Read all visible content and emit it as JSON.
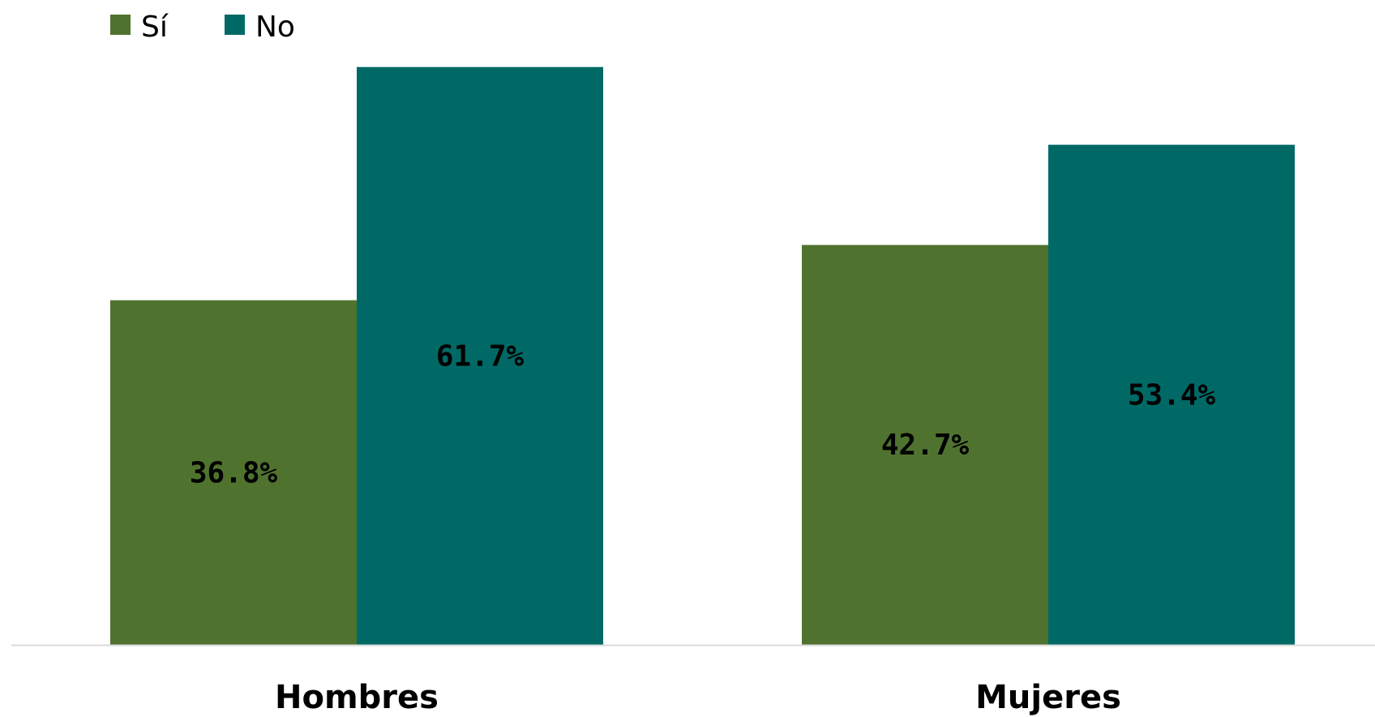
{
  "chart_data": {
    "type": "bar",
    "categories": [
      "Hombres",
      "Mujeres"
    ],
    "series": [
      {
        "name": "Sí",
        "color": "#4f732f",
        "values": [
          36.8,
          42.7
        ],
        "labels": [
          "36.8%",
          "42.7%"
        ]
      },
      {
        "name": "No",
        "color": "#006966",
        "values": [
          61.7,
          53.4
        ],
        "labels": [
          "61.7%",
          "53.4%"
        ]
      }
    ],
    "title": "",
    "xlabel": "",
    "ylabel": "",
    "ylim": [
      0,
      66
    ],
    "grid": false,
    "legend": "top-left",
    "axis_line_color": "#d9d9d9"
  }
}
